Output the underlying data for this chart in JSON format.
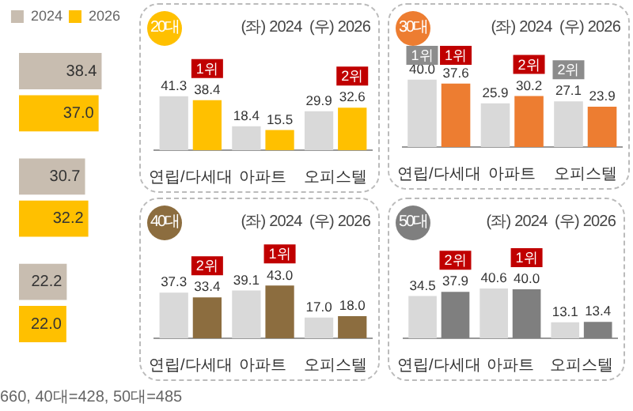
{
  "chart_data": [
    {
      "type": "bar",
      "orientation": "horizontal",
      "categories": [
        null,
        null,
        null
      ],
      "legend": "top right",
      "series": [
        {
          "name": "2024",
          "color": "#c8bdb0",
          "values": [
            38.4,
            30.7,
            22.2
          ],
          "value_labels": [
            "38.4",
            "30.7",
            "22.2"
          ]
        },
        {
          "name": "2026",
          "color": "#ffc000",
          "values": [
            37.0,
            32.2,
            22.0
          ],
          "value_labels": [
            "37.0",
            "32.2",
            "22.0"
          ]
        }
      ],
      "annotations": [
        "660, 40대=428, 50대=485"
      ]
    },
    {
      "type": "bar",
      "title": "20대",
      "categories": [
        "연립/다세대",
        "아파트",
        "오피스텔"
      ],
      "series": [
        {
          "color": "#d9d9d9",
          "values": [
            41.3,
            18.4,
            29.9
          ],
          "value_labels": [
            "41.3",
            "18.4",
            "29.9"
          ]
        },
        {
          "color": "#ffc000",
          "values": [
            38.4,
            15.5,
            32.6
          ],
          "value_labels": [
            "38.4",
            "15.5",
            "32.6"
          ]
        }
      ],
      "annotations": [
        "(좌) 2024  (우) 2026",
        {
          "text": "1위",
          "x": "연립/다세대",
          "y": 38.4
        },
        {
          "text": "2위",
          "x": "오피스텔",
          "y": 32.6
        }
      ]
    },
    {
      "type": "bar",
      "title": "30대",
      "categories": [
        "연립/다세대",
        "아파트",
        "오피스텔"
      ],
      "series": [
        {
          "color": "#d9d9d9",
          "values": [
            40.0,
            25.9,
            27.1
          ],
          "value_labels": [
            "40.0",
            "25.9",
            "27.1"
          ]
        },
        {
          "color": "#ed7d31",
          "values": [
            37.6,
            30.2,
            23.9
          ],
          "value_labels": [
            "37.6",
            "30.2",
            "23.9"
          ]
        }
      ],
      "annotations": [
        "(좌) 2024  (우) 2026",
        {
          "text": "1위",
          "x": "연립/다세대",
          "y": 40.0
        },
        {
          "text": "1위",
          "x": "연립/다세대",
          "y": 37.6
        },
        {
          "text": "2위",
          "x": "아파트",
          "y": 30.2
        },
        {
          "text": "2위",
          "x": "오피스텔",
          "y": 27.1
        }
      ]
    },
    {
      "type": "bar",
      "title": "40대",
      "categories": [
        "연립/다세대",
        "아파트",
        "오피스텔"
      ],
      "series": [
        {
          "color": "#d9d9d9",
          "values": [
            37.3,
            39.1,
            17.0
          ],
          "value_labels": [
            "37.3",
            "39.1",
            "17.0"
          ]
        },
        {
          "color": "#8c6d3f",
          "values": [
            33.4,
            43.0,
            18.0
          ],
          "value_labels": [
            "33.4",
            "43.0",
            "18.0"
          ]
        }
      ],
      "annotations": [
        "(좌) 2024  (우) 2026",
        {
          "text": "2위",
          "x": "연립/다세대",
          "y": 33.4
        },
        {
          "text": "1위",
          "x": "아파트",
          "y": 43.0
        }
      ]
    },
    {
      "type": "bar",
      "title": "50대",
      "categories": [
        "연립/다세대",
        "아파트",
        "오피스텔"
      ],
      "series": [
        {
          "color": "#d9d9d9",
          "values": [
            34.5,
            40.6,
            13.1
          ],
          "value_labels": [
            "34.5",
            "40.6",
            "13.1"
          ]
        },
        {
          "color": "#7f7f7f",
          "values": [
            37.9,
            40.0,
            13.4
          ],
          "value_labels": [
            "37.9",
            "40.0",
            "13.4"
          ]
        }
      ],
      "annotations": [
        "(좌) 2024  (우) 2026",
        {
          "text": "2위",
          "x": "연립/다세대",
          "y": 37.9
        },
        {
          "text": "1위",
          "x": "아파트",
          "y": 40.0
        }
      ]
    }
  ]
}
